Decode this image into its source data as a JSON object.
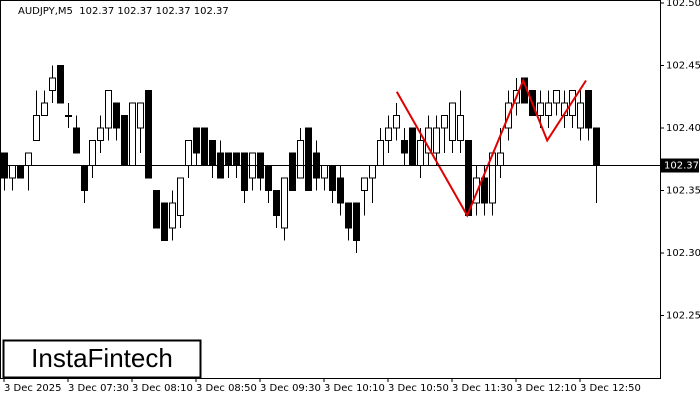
{
  "chart_data": {
    "type": "candlestick",
    "title": "AUDJPY,M5  102.37 102.37 102.37 102.37",
    "brand": "InstaFintech",
    "xlim": [
      -0.5,
      82
    ],
    "xticks": [
      {
        "value": 0,
        "label": "3 Dec 2025"
      },
      {
        "value": 8,
        "label": "3 Dec 07:30"
      },
      {
        "value": 16,
        "label": "3 Dec 08:10"
      },
      {
        "value": 24,
        "label": "3 Dec 08:50"
      },
      {
        "value": 32,
        "label": "3 Dec 09:30"
      },
      {
        "value": 40,
        "label": "3 Dec 10:10"
      },
      {
        "value": 48,
        "label": "3 Dec 10:50"
      },
      {
        "value": 56,
        "label": "3 Dec 11:30"
      },
      {
        "value": 64,
        "label": "3 Dec 12:10"
      },
      {
        "value": 72,
        "label": "3 Dec 12:50"
      }
    ],
    "ylim": [
      102.2,
      102.5
    ],
    "yticks": [
      102.25,
      {
        "value": 102.3,
        "label": "102.30"
      },
      102.35,
      {
        "value": 102.4,
        "label": "102.40"
      },
      102.45,
      {
        "value": 102.5,
        "label": "102.50"
      }
    ],
    "up_color": "#ffffff",
    "down_color": "#000000",
    "open": [
      102.38,
      102.36,
      102.37,
      102.37,
      102.39,
      102.41,
      102.43,
      102.45,
      102.41,
      102.4,
      102.37,
      102.37,
      102.39,
      102.4,
      102.42,
      102.41,
      102.37,
      102.4,
      102.43,
      102.35,
      102.34,
      102.32,
      102.33,
      102.37,
      102.4,
      102.4,
      102.39,
      102.38,
      102.38,
      102.38,
      102.38,
      102.36,
      102.38,
      102.37,
      102.35,
      102.32,
      102.38,
      102.36,
      102.4,
      102.38,
      102.36,
      102.37,
      102.36,
      102.34,
      102.34,
      102.35,
      102.36,
      102.37,
      102.39,
      102.4,
      102.39,
      102.4,
      102.37,
      102.38,
      102.38,
      102.4,
      102.39,
      102.39,
      102.39,
      102.34,
      102.36,
      102.34,
      102.37,
      102.4,
      102.42,
      102.44,
      102.43,
      102.41,
      102.41,
      102.42,
      102.41,
      102.41,
      102.4,
      102.43,
      102.4
    ],
    "high": [
      102.38,
      102.37,
      102.37,
      102.38,
      102.43,
      102.43,
      102.45,
      102.45,
      102.42,
      102.41,
      102.37,
      102.39,
      102.41,
      102.43,
      102.42,
      102.41,
      102.42,
      102.42,
      102.43,
      102.35,
      102.34,
      102.35,
      102.36,
      102.39,
      102.4,
      102.4,
      102.39,
      102.39,
      102.38,
      102.38,
      102.38,
      102.38,
      102.38,
      102.37,
      102.35,
      102.36,
      102.38,
      102.4,
      102.4,
      102.39,
      102.37,
      102.37,
      102.37,
      102.34,
      102.34,
      102.36,
      102.37,
      102.4,
      102.41,
      102.42,
      102.4,
      102.4,
      102.4,
      102.41,
      102.41,
      102.41,
      102.42,
      102.43,
      102.39,
      102.37,
      102.37,
      102.38,
      102.4,
      102.43,
      102.44,
      102.44,
      102.43,
      102.43,
      102.43,
      102.43,
      102.43,
      102.43,
      102.43,
      102.43,
      102.4
    ],
    "low": [
      102.35,
      102.35,
      102.36,
      102.35,
      102.39,
      102.41,
      102.42,
      102.42,
      102.4,
      102.38,
      102.34,
      102.36,
      102.38,
      102.39,
      102.39,
      102.37,
      102.37,
      102.38,
      102.36,
      102.32,
      102.31,
      102.31,
      102.32,
      102.36,
      102.37,
      102.37,
      102.36,
      102.36,
      102.36,
      102.36,
      102.34,
      102.35,
      102.35,
      102.34,
      102.32,
      102.31,
      102.35,
      102.36,
      102.35,
      102.35,
      102.35,
      102.34,
      102.33,
      102.31,
      102.3,
      102.33,
      102.34,
      102.37,
      102.38,
      102.39,
      102.37,
      102.37,
      102.36,
      102.37,
      102.37,
      102.38,
      102.38,
      102.38,
      102.33,
      102.33,
      102.33,
      102.33,
      102.36,
      102.39,
      102.41,
      102.42,
      102.41,
      102.4,
      102.4,
      102.41,
      102.4,
      102.4,
      102.39,
      102.39,
      102.34
    ],
    "close": [
      102.36,
      102.37,
      102.36,
      102.38,
      102.41,
      102.42,
      102.44,
      102.42,
      102.41,
      102.38,
      102.35,
      102.39,
      102.4,
      102.43,
      102.4,
      102.37,
      102.42,
      102.42,
      102.36,
      102.32,
      102.31,
      102.34,
      102.36,
      102.39,
      102.38,
      102.37,
      102.37,
      102.36,
      102.37,
      102.37,
      102.35,
      102.38,
      102.36,
      102.35,
      102.33,
      102.36,
      102.35,
      102.39,
      102.35,
      102.36,
      102.37,
      102.35,
      102.34,
      102.32,
      102.31,
      102.36,
      102.37,
      102.39,
      102.4,
      102.41,
      102.38,
      102.37,
      102.39,
      102.4,
      102.4,
      102.41,
      102.42,
      102.41,
      102.33,
      102.36,
      102.34,
      102.38,
      102.38,
      102.42,
      102.43,
      102.42,
      102.41,
      102.42,
      102.42,
      102.43,
      102.42,
      102.43,
      102.42,
      102.4,
      102.37
    ],
    "price_line": {
      "value": 102.37,
      "label": "102.37"
    },
    "pattern": {
      "color": "#e00000",
      "x": [
        49.1,
        57.9,
        64.9,
        67.9,
        72.75
      ],
      "y": [
        102.429,
        102.33,
        102.438,
        102.39,
        102.438
      ]
    }
  }
}
